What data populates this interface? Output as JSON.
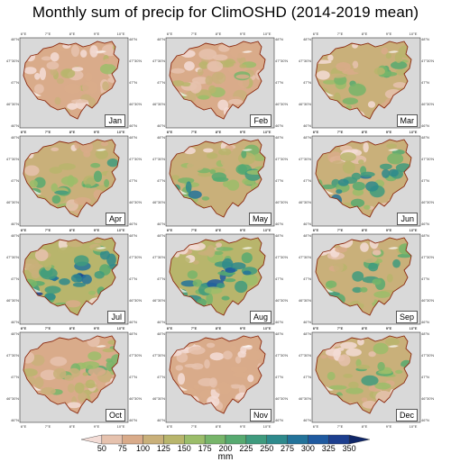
{
  "title": "Monthly sum of precip for ClimOSHD (2014-2019 mean)",
  "tick_labels": {
    "lon": [
      "6°E",
      "7°E",
      "8°E",
      "9°E",
      "10°E"
    ],
    "lat": [
      "48°N",
      "47°30'N",
      "47°N",
      "46°30'N",
      "46°N"
    ]
  },
  "months": [
    {
      "label": "Jan",
      "level": 0.25
    },
    {
      "label": "Feb",
      "level": 0.3
    },
    {
      "label": "Mar",
      "level": 0.4
    },
    {
      "label": "Apr",
      "level": 0.45
    },
    {
      "label": "May",
      "level": 0.55
    },
    {
      "label": "Jun",
      "level": 0.6
    },
    {
      "label": "Jul",
      "level": 0.7
    },
    {
      "label": "Aug",
      "level": 0.65
    },
    {
      "label": "Sep",
      "level": 0.5
    },
    {
      "label": "Oct",
      "level": 0.35
    },
    {
      "label": "Nov",
      "level": 0.15
    },
    {
      "label": "Dec",
      "level": 0.45
    }
  ],
  "colorbar": {
    "unit": "mm",
    "labels": [
      "50",
      "75",
      "100",
      "125",
      "150",
      "175",
      "200",
      "225",
      "250",
      "275",
      "300",
      "325",
      "350"
    ],
    "colors": [
      "#f3dcd6",
      "#e6c2ae",
      "#d9ab8a",
      "#c9b07a",
      "#b8b56c",
      "#9bbd6a",
      "#77b56a",
      "#57aa70",
      "#3f9b7e",
      "#2e8a8c",
      "#23739a",
      "#1f5aa0",
      "#1d3f8f",
      "#0f2668"
    ]
  }
}
